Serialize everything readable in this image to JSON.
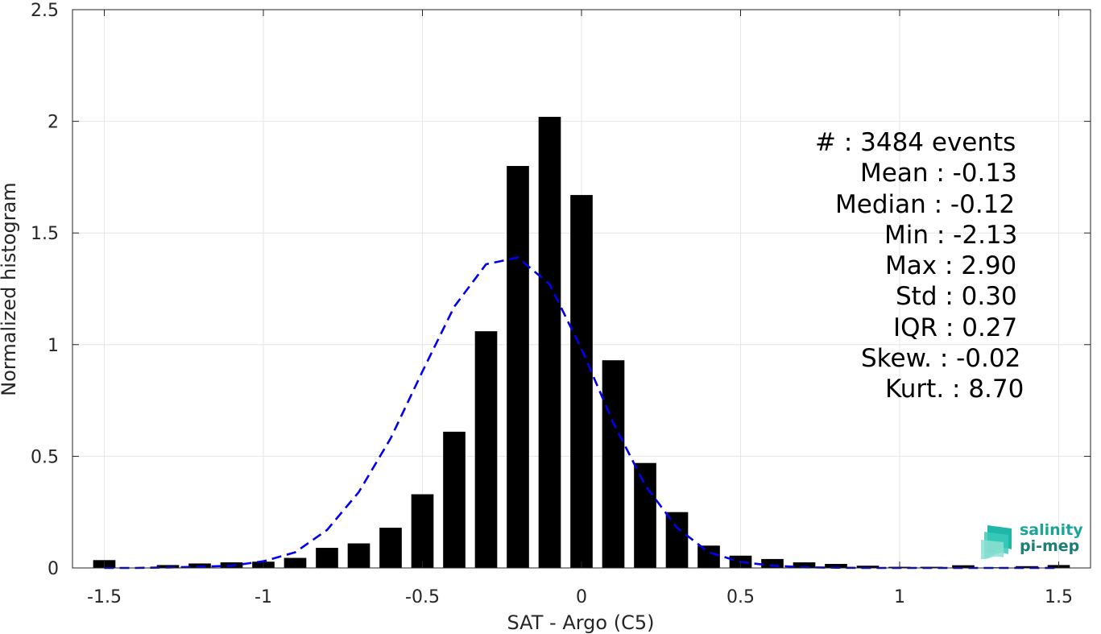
{
  "chart_data": {
    "type": "bar",
    "xlabel": "SAT - Argo (C5)",
    "ylabel": "Normalized histogram",
    "xlim": [
      -1.6,
      1.6
    ],
    "ylim": [
      0,
      2.5
    ],
    "grid": true,
    "x_ticks": [
      "-1.5",
      "-1",
      "-0.5",
      "0",
      "0.5",
      "1",
      "1.5"
    ],
    "x_tick_values": [
      -1.5,
      -1,
      -0.5,
      0,
      0.5,
      1,
      1.5
    ],
    "y_ticks": [
      "0",
      "0.5",
      "1",
      "1.5",
      "2",
      "2.5"
    ],
    "y_tick_values": [
      0,
      0.5,
      1,
      1.5,
      2,
      2.5
    ],
    "bar_width": 0.07,
    "bars": {
      "x": [
        -1.5,
        -1.4,
        -1.3,
        -1.2,
        -1.1,
        -1.0,
        -0.9,
        -0.8,
        -0.7,
        -0.6,
        -0.5,
        -0.4,
        -0.3,
        -0.2,
        -0.1,
        0.0,
        0.1,
        0.2,
        0.3,
        0.4,
        0.5,
        0.6,
        0.7,
        0.8,
        0.9,
        1.0,
        1.1,
        1.2,
        1.3,
        1.4,
        1.5
      ],
      "values": [
        0.035,
        0.0,
        0.013,
        0.02,
        0.025,
        0.028,
        0.045,
        0.09,
        0.11,
        0.18,
        0.33,
        0.61,
        1.06,
        1.8,
        2.02,
        1.67,
        0.93,
        0.47,
        0.25,
        0.1,
        0.055,
        0.04,
        0.025,
        0.018,
        0.01,
        0.005,
        0.005,
        0.012,
        0.003,
        0.008,
        0.013
      ]
    },
    "fit": {
      "name": "",
      "style": "dashed",
      "color": "#0000ee",
      "x": [
        -1.5,
        -1.4,
        -1.3,
        -1.2,
        -1.1,
        -1.0,
        -0.9,
        -0.8,
        -0.7,
        -0.6,
        -0.5,
        -0.4,
        -0.3,
        -0.2,
        -0.1,
        0.0,
        0.1,
        0.2,
        0.3,
        0.4,
        0.5,
        0.6,
        0.7,
        0.8,
        0.9,
        1.0,
        1.1,
        1.2,
        1.3,
        1.4,
        1.5
      ],
      "values": [
        0.0,
        0.0,
        0.002,
        0.005,
        0.01,
        0.03,
        0.07,
        0.17,
        0.34,
        0.58,
        0.88,
        1.17,
        1.36,
        1.39,
        1.27,
        0.98,
        0.65,
        0.37,
        0.18,
        0.07,
        0.027,
        0.01,
        0.003,
        0.001,
        0.0,
        0.0,
        0.0,
        0.0,
        0.0,
        0.0,
        0.0
      ]
    },
    "colors": {
      "bars": "#000000",
      "fit": "#0000ee",
      "grid": "#e6e6e6",
      "axis": "#262626"
    }
  },
  "stats": {
    "events": "#  : 3484 events",
    "mean": "Mean : -0.13",
    "median": "Median : -0.12",
    "min": "Min : -2.13",
    "max": "Max : 2.90",
    "std": "Std : 0.30",
    "iqr": "IQR : 0.27",
    "skew": "Skew. : -0.02",
    "kurt": "Kurt. : 8.70"
  },
  "logo": {
    "line1": "salinity",
    "line2": "pi-mep"
  }
}
